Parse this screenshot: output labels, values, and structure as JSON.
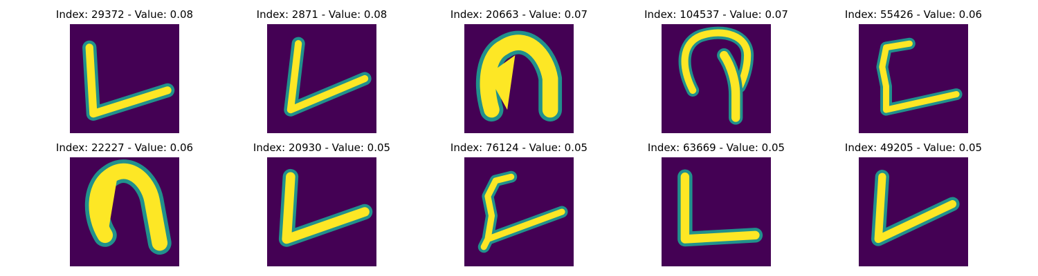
{
  "panels": [
    {
      "title": "Index: 29372 - Value: 0.08",
      "shape": "v-left"
    },
    {
      "title": "Index: 2871 - Value: 0.08",
      "shape": "v-left"
    },
    {
      "title": "Index: 20663 - Value: 0.07",
      "shape": "arch-filled"
    },
    {
      "title": "Index: 104537 - Value: 0.07",
      "shape": "hook"
    },
    {
      "title": "Index: 55426 - Value: 0.06",
      "shape": "c-bracket"
    },
    {
      "title": "Index: 22227 - Value: 0.06",
      "shape": "arch-filled"
    },
    {
      "title": "Index: 20930 - Value: 0.05",
      "shape": "v-left"
    },
    {
      "title": "Index: 76124 - Value: 0.05",
      "shape": "c-bracket"
    },
    {
      "title": "Index: 63669 - Value: 0.05",
      "shape": "l-shape"
    },
    {
      "title": "Index: 49205 - Value: 0.05",
      "shape": "v-left"
    }
  ],
  "colors": {
    "background": "#440154",
    "edge": "#21918c",
    "stroke": "#fde725"
  }
}
